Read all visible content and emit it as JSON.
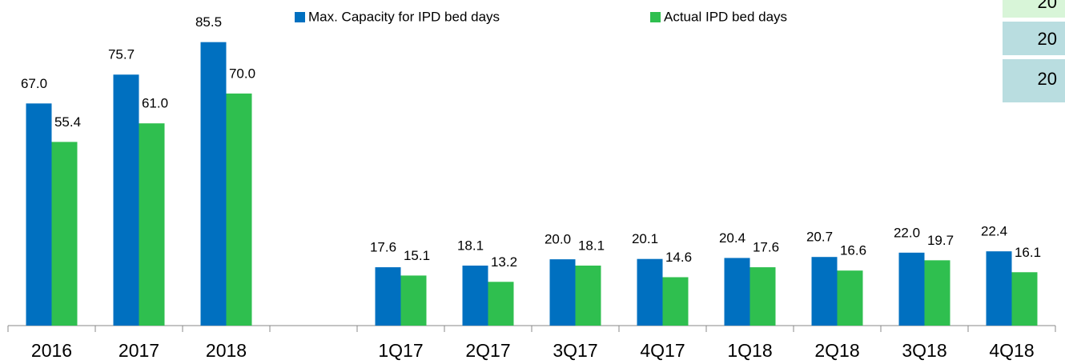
{
  "chart_data": {
    "type": "bar",
    "categories": [
      "2016",
      "2017",
      "2018",
      null,
      "1Q17",
      "2Q17",
      "3Q17",
      "4Q17",
      "1Q18",
      "2Q18",
      "3Q18",
      "4Q18"
    ],
    "series": [
      {
        "name": "Max. Capacity for IPD bed days",
        "color": "#0070c0",
        "values": [
          67.0,
          75.7,
          85.5,
          null,
          17.6,
          18.1,
          20.0,
          20.1,
          20.4,
          20.7,
          22.0,
          22.4
        ],
        "value_labels": [
          "67.0",
          "75.7",
          "85.5",
          null,
          "17.6",
          "18.1",
          "20.0",
          "20.1",
          "20.4",
          "20.7",
          "22.0",
          "22.4"
        ]
      },
      {
        "name": "Actual IPD bed days",
        "color": "#2fbf4f",
        "values": [
          55.4,
          61.0,
          70.0,
          null,
          15.1,
          13.2,
          18.1,
          14.6,
          17.6,
          16.6,
          19.7,
          16.1
        ],
        "value_labels": [
          "55.4",
          "61.0",
          "70.0",
          null,
          "15.1",
          "13.2",
          "18.1",
          "14.6",
          "17.6",
          "16.6",
          "19.7",
          "16.1"
        ]
      }
    ],
    "ylim": [
      0,
      90
    ],
    "legend": "top"
  },
  "table_cells": [
    "20",
    "20",
    "20"
  ]
}
